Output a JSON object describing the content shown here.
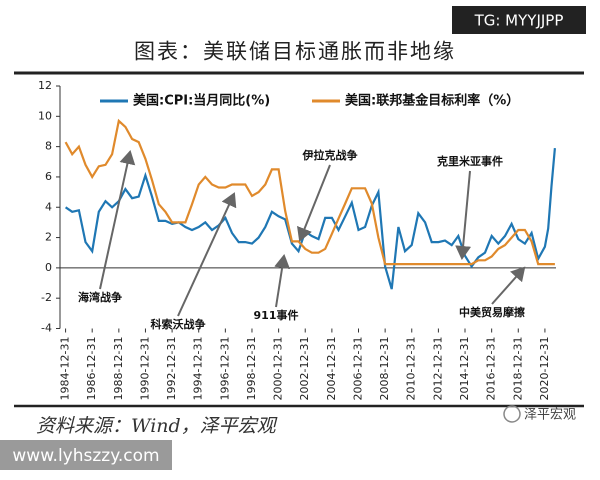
{
  "chart_data": {
    "type": "line",
    "title": "图表：美联储目标通胀而非地缘",
    "watermark": "TG: MYYJJPP",
    "source": "资料来源：Wind，泽平宏观",
    "site": "www.lyhszzy.com",
    "brand": "泽平宏观",
    "x": [
      "1984-12-31",
      "1985-06-30",
      "1985-12-31",
      "1986-06-30",
      "1986-12-31",
      "1987-06-30",
      "1987-12-31",
      "1988-06-30",
      "1988-12-31",
      "1989-06-30",
      "1989-12-31",
      "1990-06-30",
      "1990-12-31",
      "1991-06-30",
      "1991-12-31",
      "1992-06-30",
      "1992-12-31",
      "1993-06-30",
      "1993-12-31",
      "1994-06-30",
      "1994-12-31",
      "1995-06-30",
      "1995-12-31",
      "1996-06-30",
      "1996-12-31",
      "1997-06-30",
      "1997-12-31",
      "1998-06-30",
      "1998-12-31",
      "1999-06-30",
      "1999-12-31",
      "2000-06-30",
      "2000-12-31",
      "2001-06-30",
      "2001-12-31",
      "2002-06-30",
      "2002-12-31",
      "2003-06-30",
      "2003-12-31",
      "2004-06-30",
      "2004-12-31",
      "2005-06-30",
      "2005-12-31",
      "2006-06-30",
      "2006-12-31",
      "2007-06-30",
      "2007-12-31",
      "2008-06-30",
      "2008-12-31",
      "2009-06-30",
      "2009-12-31",
      "2010-06-30",
      "2010-12-31",
      "2011-06-30",
      "2011-12-31",
      "2012-06-30",
      "2012-12-31",
      "2013-06-30",
      "2013-12-31",
      "2014-06-30",
      "2014-12-31",
      "2015-06-30",
      "2015-12-31",
      "2016-06-30",
      "2016-12-31",
      "2017-06-30",
      "2017-12-31",
      "2018-06-30",
      "2018-12-31",
      "2019-06-30",
      "2019-12-31",
      "2020-06-30",
      "2020-12-31",
      "2021-03-31",
      "2021-06-30",
      "2021-09-30"
    ],
    "series": [
      {
        "name": "美国:CPI:当月同比(%)",
        "color": "#1f77b4",
        "values": [
          4.0,
          3.7,
          3.8,
          1.7,
          1.1,
          3.7,
          4.4,
          4.0,
          4.4,
          5.2,
          4.6,
          4.7,
          6.1,
          4.7,
          3.1,
          3.1,
          2.9,
          3.0,
          2.7,
          2.5,
          2.7,
          3.0,
          2.5,
          2.8,
          3.3,
          2.3,
          1.7,
          1.7,
          1.6,
          2.0,
          2.7,
          3.7,
          3.4,
          3.2,
          1.6,
          1.1,
          2.4,
          2.1,
          1.9,
          3.3,
          3.3,
          2.5,
          3.4,
          4.3,
          2.5,
          2.7,
          4.1,
          5.0,
          0.1,
          -1.4,
          2.7,
          1.1,
          1.5,
          3.6,
          3.0,
          1.7,
          1.7,
          1.8,
          1.5,
          2.1,
          0.8,
          0.1,
          0.7,
          1.0,
          2.1,
          1.6,
          2.1,
          2.9,
          1.9,
          1.6,
          2.3,
          0.6,
          1.4,
          2.6,
          5.4,
          7.9
        ]
      },
      {
        "name": "美国:联邦基金目标利率（%）",
        "color": "#e08a2c",
        "values": [
          8.3,
          7.5,
          8.0,
          6.8,
          6.0,
          6.7,
          6.8,
          7.5,
          9.7,
          9.3,
          8.5,
          8.3,
          7.2,
          5.8,
          4.2,
          3.7,
          3.0,
          3.0,
          3.0,
          4.2,
          5.5,
          6.0,
          5.5,
          5.3,
          5.3,
          5.5,
          5.5,
          5.5,
          4.75,
          5.0,
          5.5,
          6.5,
          6.5,
          3.75,
          1.75,
          1.75,
          1.25,
          1.0,
          1.0,
          1.25,
          2.25,
          3.25,
          4.25,
          5.25,
          5.25,
          5.25,
          4.25,
          2.0,
          0.25,
          0.25,
          0.25,
          0.25,
          0.25,
          0.25,
          0.25,
          0.25,
          0.25,
          0.25,
          0.25,
          0.25,
          0.25,
          0.25,
          0.5,
          0.5,
          0.75,
          1.25,
          1.5,
          2.0,
          2.5,
          2.5,
          1.75,
          0.25,
          0.25,
          0.25,
          0.25,
          0.25
        ]
      }
    ],
    "xlim": [
      "1984-07-31",
      "2021-10-31"
    ],
    "xticks": [
      "1984-12-31",
      "1986-12-31",
      "1988-12-31",
      "1990-12-31",
      "1992-12-31",
      "1994-12-31",
      "1996-12-31",
      "1998-12-31",
      "2000-12-31",
      "2002-12-31",
      "2004-12-31",
      "2006-12-31",
      "2008-12-31",
      "2010-12-31",
      "2012-12-31",
      "2014-12-31",
      "2016-12-31",
      "2018-12-31",
      "2020-12-31"
    ],
    "ylim": [
      -4,
      12
    ],
    "yticks": [
      -4,
      -2,
      0,
      2,
      4,
      6,
      8,
      10,
      12
    ],
    "annotations": [
      {
        "text": "海湾战争"
      },
      {
        "text": "科索沃战争"
      },
      {
        "text": "911事件"
      },
      {
        "text": "伊拉克战争"
      },
      {
        "text": "克里米亚事件"
      },
      {
        "text": "中美贸易摩擦"
      }
    ]
  }
}
